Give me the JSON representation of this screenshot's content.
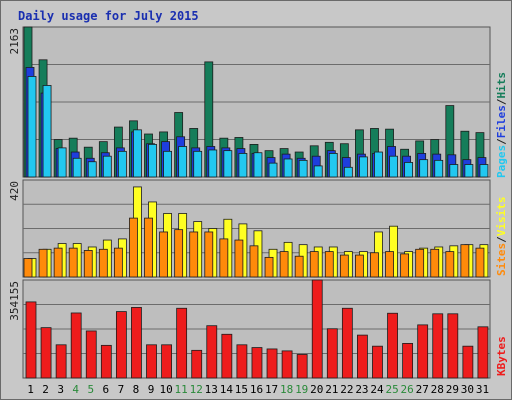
{
  "title": "Daily usage for July 2015",
  "colors": {
    "hits": "#157d5a",
    "files": "#1e3ede",
    "pages": "#22c8f0",
    "visits": "#ffff22",
    "sites": "#ff8a0a",
    "kbytes": "#ee1c1c",
    "weekend_label": "#2a8a3a",
    "weekday_label": "#000000",
    "separator": "#222222"
  },
  "legends": {
    "top": {
      "pages": "Pages",
      "sep1": "/",
      "files": "Files",
      "sep2": "/",
      "hits": "Hits"
    },
    "mid": {
      "sites": "Sites",
      "sep1": "/",
      "visits": "Visits"
    },
    "bottom": {
      "kbytes": "KBytes"
    }
  },
  "chart_data": {
    "type": "bar",
    "title": "Daily usage for July 2015",
    "x": [
      "1",
      "2",
      "3",
      "4",
      "5",
      "6",
      "7",
      "8",
      "9",
      "10",
      "11",
      "12",
      "13",
      "14",
      "15",
      "16",
      "17",
      "18",
      "19",
      "20",
      "21",
      "22",
      "23",
      "24",
      "25",
      "26",
      "27",
      "28",
      "29",
      "30",
      "31"
    ],
    "weekend_days": [
      "4",
      "5",
      "11",
      "12",
      "18",
      "19",
      "25",
      "26"
    ],
    "panels": [
      {
        "name": "hits-files-pages",
        "ymax": 2163,
        "ytick": "2163",
        "series": [
          {
            "name": "Hits",
            "values": [
              2163,
              1690,
              540,
              560,
              430,
              510,
              720,
              810,
              620,
              650,
              930,
              700,
              1660,
              560,
              570,
              470,
              380,
              410,
              360,
              450,
              500,
              480,
              680,
              700,
              690,
              400,
              520,
              540,
              1030,
              660,
              640
            ]
          },
          {
            "name": "Files",
            "values": [
              1580,
              1210,
              410,
              360,
              270,
              350,
              420,
              650,
              480,
              510,
              580,
              420,
              440,
              420,
              410,
              340,
              280,
              330,
              270,
              300,
              380,
              280,
              330,
              340,
              440,
              300,
              340,
              330,
              320,
              250,
              280
            ]
          },
          {
            "name": "Pages",
            "values": [
              1450,
              1320,
              420,
              270,
              220,
              300,
              370,
              680,
              470,
              370,
              440,
              370,
              390,
              380,
              340,
              350,
              200,
              260,
              240,
              160,
              340,
              140,
              290,
              360,
              300,
              210,
              250,
              240,
              180,
              180,
              180
            ]
          }
        ]
      },
      {
        "name": "visits-sites",
        "ymax": 420,
        "ytick": "420",
        "series": [
          {
            "name": "Visits",
            "values": [
              80,
              120,
              145,
              145,
              130,
              160,
              165,
              390,
              325,
              275,
              275,
              240,
              210,
              250,
              230,
              200,
              120,
              150,
              140,
              130,
              130,
              110,
              110,
              195,
              220,
              110,
              125,
              130,
              135,
              140,
              140
            ]
          },
          {
            "name": "Sites",
            "values": [
              80,
              120,
              125,
              125,
              115,
              120,
              125,
              255,
              255,
              195,
              205,
              195,
              195,
              165,
              160,
              135,
              85,
              110,
              90,
              110,
              110,
              95,
              95,
              105,
              110,
              100,
              120,
              120,
              110,
              140,
              125
            ]
          }
        ]
      },
      {
        "name": "kbytes",
        "ymax": 354155,
        "ytick": "354155",
        "series": [
          {
            "name": "KBytes",
            "values": [
              275000,
              182000,
              120000,
              235000,
              170000,
              118000,
              240000,
              255000,
              120000,
              120000,
              252000,
              100000,
              189000,
              158000,
              120000,
              110000,
              105000,
              98000,
              85000,
              354155,
              178000,
              252000,
              155000,
              115000,
              234000,
              125000,
              192000,
              232000,
              232000,
              115000,
              185000
            ]
          }
        ]
      }
    ],
    "grid": true
  }
}
